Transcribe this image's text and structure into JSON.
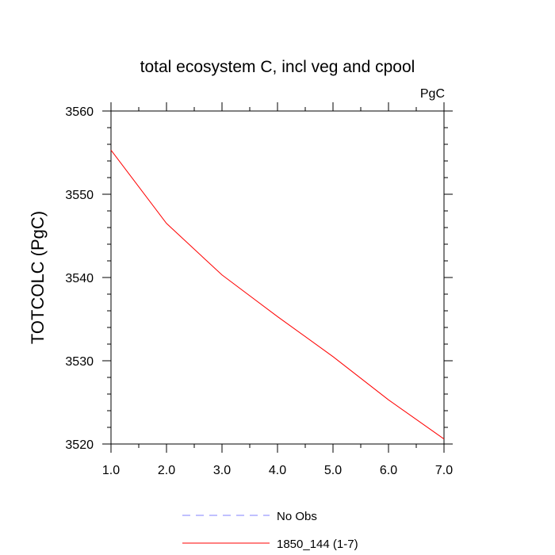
{
  "chart_data": {
    "type": "line",
    "title": "total ecosystem C, incl veg and cpool",
    "units_label": "PgC",
    "ylabel": "TOTCOLC  (PgC)",
    "xlabel": "",
    "xlim": [
      1.0,
      7.0
    ],
    "ylim": [
      3520,
      3560
    ],
    "xticks": [
      "1.0",
      "2.0",
      "3.0",
      "4.0",
      "5.0",
      "6.0",
      "7.0"
    ],
    "yticks": [
      "3520",
      "3530",
      "3540",
      "3550",
      "3560"
    ],
    "grid": false,
    "legend_position": "bottom",
    "series": [
      {
        "name": "1850_144 (1-7)",
        "color": "#ff0000",
        "dash": "solid",
        "x": [
          1,
          2,
          3,
          4,
          5,
          6,
          7
        ],
        "values": [
          3555.3,
          3546.5,
          3540.3,
          3535.3,
          3530.5,
          3525.3,
          3520.6
        ]
      }
    ],
    "legend": [
      {
        "name": "No Obs",
        "color": "#8080ff",
        "dash": "dashed"
      },
      {
        "name": "1850_144 (1-7)",
        "color": "#ff0000",
        "dash": "solid"
      }
    ]
  }
}
